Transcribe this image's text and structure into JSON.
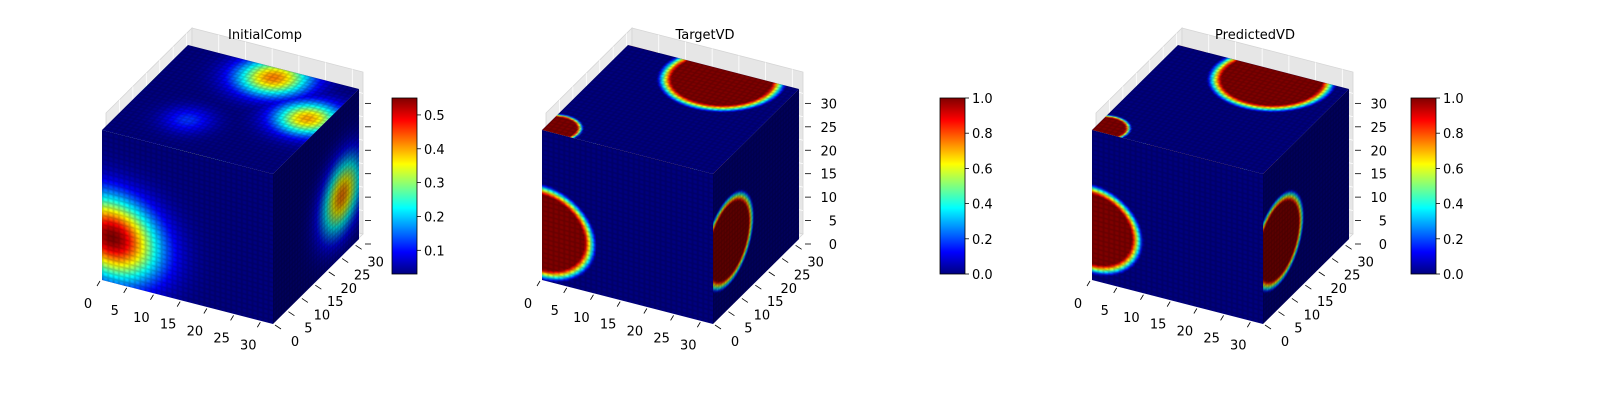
{
  "figure": {
    "background": "#ffffff",
    "grid": true
  },
  "colormap": {
    "name": "jet",
    "stops": [
      "#00007f",
      "#0000ff",
      "#007fff",
      "#00ffff",
      "#7fff7f",
      "#ffff00",
      "#ff7f00",
      "#ff0000",
      "#7f0000"
    ]
  },
  "chart_data": [
    {
      "type": "heatmap",
      "subtype": "3d-voxel-cube",
      "title": "InitialComp",
      "grid_size": 32,
      "x_ticks": [
        "0",
        "5",
        "10",
        "15",
        "20",
        "25",
        "30"
      ],
      "y_ticks": [
        "0",
        "5",
        "10",
        "15",
        "20",
        "25",
        "30"
      ],
      "z_ticks": [
        "0",
        "5",
        "10",
        "15",
        "20",
        "25",
        "30"
      ],
      "z_tick_labels_shown": false,
      "colorbar": {
        "range": [
          0.03,
          0.55
        ],
        "ticks": [
          "0.1",
          "0.2",
          "0.3",
          "0.4",
          "0.5"
        ],
        "tick_values": [
          0.1,
          0.2,
          0.3,
          0.4,
          0.5
        ]
      },
      "features": [
        {
          "face": "front",
          "u": 0.06,
          "v": 0.7,
          "radius": 0.38,
          "peak": 0.55
        },
        {
          "face": "top",
          "u": 0.55,
          "v": 0.1,
          "radius": 0.28,
          "peak": 0.42
        },
        {
          "face": "top",
          "u": 0.9,
          "v": 0.4,
          "radius": 0.25,
          "peak": 0.4
        },
        {
          "face": "top",
          "u": 0.35,
          "v": 0.7,
          "radius": 0.2,
          "peak": 0.12
        },
        {
          "face": "side",
          "u": 0.8,
          "v": 0.6,
          "radius": 0.33,
          "peak": 0.42
        }
      ]
    },
    {
      "type": "heatmap",
      "subtype": "3d-voxel-cube",
      "title": "TargetVD",
      "grid_size": 32,
      "x_ticks": [
        "0",
        "5",
        "10",
        "15",
        "20",
        "25",
        "30"
      ],
      "y_ticks": [
        "0",
        "5",
        "10",
        "15",
        "20",
        "25",
        "30"
      ],
      "z_ticks": [
        "0",
        "5",
        "10",
        "15",
        "20",
        "25",
        "30"
      ],
      "z_tick_labels_shown": true,
      "colorbar": {
        "range": [
          0.0,
          1.0
        ],
        "ticks": [
          "0.0",
          "0.2",
          "0.4",
          "0.6",
          "0.8",
          "1.0"
        ],
        "tick_values": [
          0.0,
          0.2,
          0.4,
          0.6,
          0.8,
          1.0
        ]
      },
      "features": [
        {
          "face": "front",
          "u": 0.0,
          "v": 0.68,
          "radius": 0.32,
          "peak": 1.0
        },
        {
          "face": "top",
          "u": 0.6,
          "v": 0.1,
          "radius": 0.34,
          "peak": 1.0
        },
        {
          "face": "top",
          "u": 0.05,
          "v": 0.95,
          "radius": 0.15,
          "peak": 1.0
        },
        {
          "face": "side",
          "u": 0.18,
          "v": 0.55,
          "radius": 0.3,
          "peak": 1.0
        }
      ]
    },
    {
      "type": "heatmap",
      "subtype": "3d-voxel-cube",
      "title": "PredictedVD",
      "grid_size": 32,
      "x_ticks": [
        "0",
        "5",
        "10",
        "15",
        "20",
        "25",
        "30"
      ],
      "y_ticks": [
        "0",
        "5",
        "10",
        "15",
        "20",
        "25",
        "30"
      ],
      "z_ticks": [
        "0",
        "5",
        "10",
        "15",
        "20",
        "25",
        "30"
      ],
      "z_tick_labels_shown": true,
      "colorbar": {
        "range": [
          0.0,
          1.0
        ],
        "ticks": [
          "0.0",
          "0.2",
          "0.4",
          "0.6",
          "0.8",
          "1.0"
        ],
        "tick_values": [
          0.0,
          0.2,
          0.4,
          0.6,
          0.8,
          1.0
        ]
      },
      "features": [
        {
          "face": "front",
          "u": 0.0,
          "v": 0.66,
          "radius": 0.3,
          "peak": 1.0
        },
        {
          "face": "top",
          "u": 0.6,
          "v": 0.1,
          "radius": 0.34,
          "peak": 1.0
        },
        {
          "face": "top",
          "u": 0.05,
          "v": 0.95,
          "radius": 0.14,
          "peak": 1.0
        },
        {
          "face": "side",
          "u": 0.18,
          "v": 0.55,
          "radius": 0.3,
          "peak": 1.0
        }
      ]
    }
  ]
}
